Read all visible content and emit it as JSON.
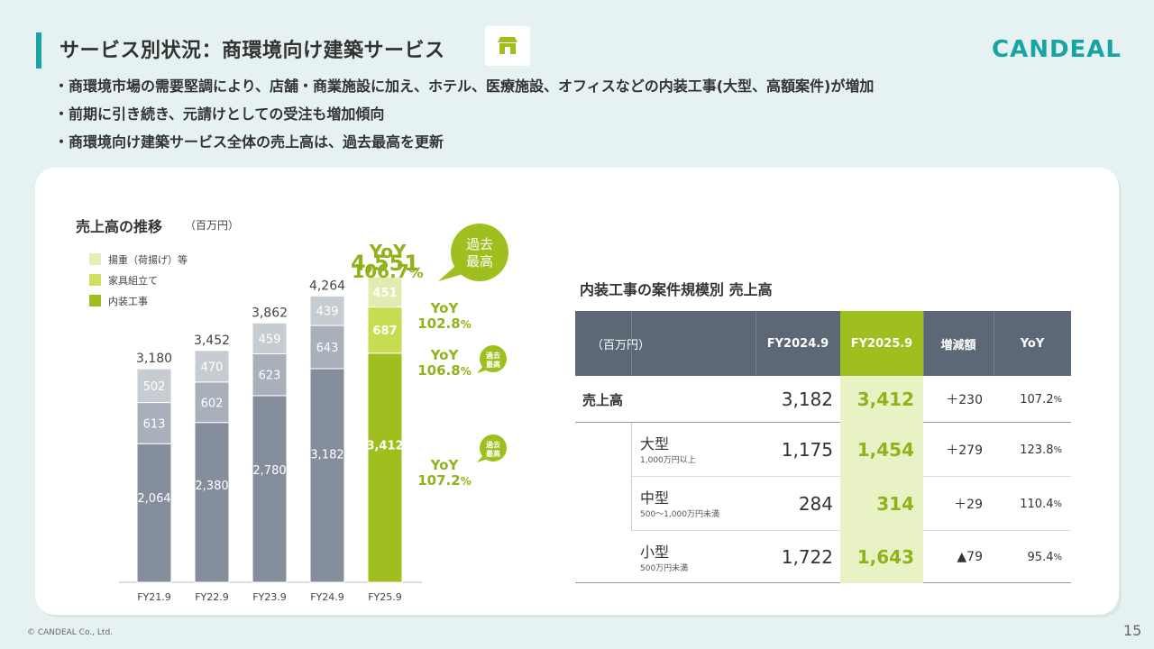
{
  "header": {
    "title": "サービス別状況：商環境向け建築サービス",
    "logo": "CANDEAL"
  },
  "bullets": [
    "商環境市場の需要堅調により、店舗・商業施設に加え、ホテル、医療施設、オフィスなどの内装工事(大型、高額案件)が増加",
    "前期に引き続き、元請けとしての受注も増加傾向",
    "商環境向け建築サービス全体の売上高は、過去最高を更新"
  ],
  "chart_data": {
    "type": "bar",
    "title": "売上高の推移",
    "unit": "（百万円）",
    "categories": [
      "FY21.9",
      "FY22.9",
      "FY23.9",
      "FY24.9",
      "FY25.9"
    ],
    "series": [
      {
        "name": "内装工事",
        "values": [
          2064,
          2380,
          2780,
          3182,
          3412
        ]
      },
      {
        "name": "家具組立て",
        "values": [
          613,
          602,
          623,
          643,
          687
        ]
      },
      {
        "name": "揚重（荷揚げ）等",
        "values": [
          502,
          470,
          459,
          439,
          451
        ]
      }
    ],
    "value_labels": [
      [
        "2,064",
        "2,380",
        "2,780",
        "3,182",
        "3,412"
      ],
      [
        "613",
        "602",
        "623",
        "643",
        "687"
      ],
      [
        "502",
        "470",
        "459",
        "439",
        "451"
      ]
    ],
    "totals": [
      "3,180",
      "3,452",
      "3,862",
      "4,264",
      "4,551"
    ],
    "ylim": [
      0,
      5000
    ],
    "colors": {
      "past": [
        "#858e9d",
        "#a8b0bb",
        "#c7ccd3"
      ],
      "current": [
        "#9fbf1f",
        "#c8dc52",
        "#e2ecb0"
      ]
    },
    "legend_colors": [
      "#e6efb9",
      "#cfe05f",
      "#9fbf1f"
    ],
    "legend": [
      "揚重（荷揚げ）等",
      "家具組立て",
      "内装工事"
    ]
  },
  "yoy": {
    "total": {
      "label": "YoY",
      "value": "106.7",
      "unit": "%"
    },
    "top": {
      "label": "YoY",
      "value": "102.8",
      "unit": "%"
    },
    "mid": {
      "label": "YoY",
      "value": "106.8",
      "unit": "%"
    },
    "bottom": {
      "label": "YoY",
      "value": "107.2",
      "unit": "%"
    }
  },
  "bubbles": {
    "big": [
      "過去",
      "最高"
    ],
    "small": [
      "過去",
      "最高"
    ]
  },
  "colors": {
    "accent": "#1aa3a3",
    "green": "#9fbf1f",
    "header": "#5d6877"
  },
  "table": {
    "title": "内装工事の案件規模別 売上高",
    "headers": {
      "unit": "（百万円）",
      "prev": "FY2024.9",
      "cur": "FY2025.9",
      "diff": "増減額",
      "yoy": "YoY"
    },
    "total": {
      "label": "売上高",
      "prev": "3,182",
      "cur": "3,412",
      "diff": "＋230",
      "yoy_num": "107.2",
      "yoy_pct": "%"
    },
    "rows": [
      {
        "label": "大型",
        "sub": "1,000万円以上",
        "prev": "1,175",
        "cur": "1,454",
        "diff": "＋279",
        "yoy_num": "123.8",
        "yoy_pct": "%"
      },
      {
        "label": "中型",
        "sub": "500～1,000万円未満",
        "prev": "284",
        "cur": "314",
        "diff": "＋29",
        "yoy_num": "110.4",
        "yoy_pct": "%"
      },
      {
        "label": "小型",
        "sub": "500万円未満",
        "prev": "1,722",
        "cur": "1,643",
        "diff": "▲79",
        "yoy_num": "95.4",
        "yoy_pct": "%"
      }
    ]
  },
  "footer": {
    "copyright": "© CANDEAL Co., Ltd.",
    "page": "15"
  }
}
